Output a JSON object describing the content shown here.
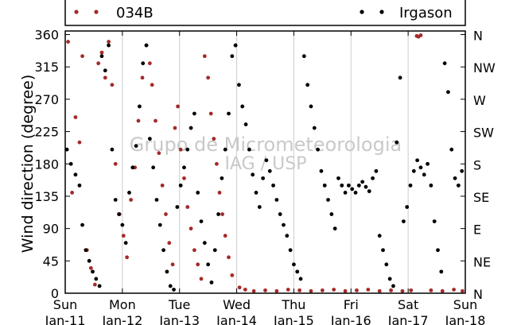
{
  "chart_data": {
    "type": "scatter",
    "ylabel": "Wind direction (degree)",
    "ylim": [
      0,
      365
    ],
    "xlim": [
      "Jan-11",
      "Jan-18"
    ],
    "x_unit": "day (Jan-11 00:00 to Jan-18 00:00)",
    "y_ticks": [
      "0",
      "45",
      "90",
      "135",
      "180",
      "225",
      "270",
      "315",
      "360"
    ],
    "y_right_ticks": [
      "N",
      "NE",
      "E",
      "SE",
      "S",
      "SW",
      "W",
      "NW",
      "N"
    ],
    "x_ticks": [
      {
        "day": "Sun",
        "date": "Jan-11"
      },
      {
        "day": "Mon",
        "date": "Jan-12"
      },
      {
        "day": "Tue",
        "date": "Jan-13"
      },
      {
        "day": "Wed",
        "date": "Jan-14"
      },
      {
        "day": "Thu",
        "date": "Jan-15"
      },
      {
        "day": "Fri",
        "date": "Jan-16"
      },
      {
        "day": "Sat",
        "date": "Jan-17"
      },
      {
        "day": "Sun",
        "date": "Jan-18"
      }
    ],
    "grid": "vertical",
    "legend_placement": "top (outside plot)",
    "watermark": [
      "Grupo de Micrometeorologia",
      "IAG / USP"
    ],
    "series": [
      {
        "name": "034B",
        "color": "#a52a2a",
        "points": [
          [
            0.05,
            350
          ],
          [
            0.12,
            140
          ],
          [
            0.18,
            245
          ],
          [
            0.25,
            210
          ],
          [
            0.3,
            330
          ],
          [
            0.38,
            60
          ],
          [
            0.45,
            35
          ],
          [
            0.52,
            12
          ],
          [
            0.58,
            320
          ],
          [
            0.64,
            335
          ],
          [
            0.7,
            300
          ],
          [
            0.76,
            350
          ],
          [
            0.82,
            290
          ],
          [
            0.88,
            180
          ],
          [
            0.95,
            110
          ],
          [
            1.02,
            80
          ],
          [
            1.08,
            50
          ],
          [
            1.15,
            130
          ],
          [
            1.22,
            175
          ],
          [
            1.28,
            240
          ],
          [
            1.35,
            300
          ],
          [
            1.42,
            345
          ],
          [
            1.48,
            320
          ],
          [
            1.52,
            290
          ],
          [
            1.58,
            240
          ],
          [
            1.64,
            195
          ],
          [
            1.7,
            150
          ],
          [
            1.76,
            110
          ],
          [
            1.82,
            70
          ],
          [
            1.88,
            40
          ],
          [
            1.92,
            230
          ],
          [
            1.97,
            260
          ],
          [
            2.02,
            200
          ],
          [
            2.08,
            160
          ],
          [
            2.14,
            120
          ],
          [
            2.2,
            90
          ],
          [
            2.26,
            60
          ],
          [
            2.32,
            40
          ],
          [
            2.38,
            20
          ],
          [
            2.44,
            330
          ],
          [
            2.5,
            300
          ],
          [
            2.55,
            250
          ],
          [
            2.6,
            215
          ],
          [
            2.65,
            180
          ],
          [
            2.7,
            140
          ],
          [
            2.75,
            110
          ],
          [
            2.8,
            80
          ],
          [
            2.86,
            50
          ],
          [
            2.92,
            25
          ],
          [
            2.98,
            345
          ],
          [
            3.05,
            8
          ],
          [
            3.15,
            5
          ],
          [
            3.3,
            3
          ],
          [
            3.5,
            4
          ],
          [
            3.7,
            3
          ],
          [
            3.9,
            5
          ],
          [
            4.1,
            4
          ],
          [
            4.3,
            3
          ],
          [
            4.5,
            4
          ],
          [
            4.7,
            5
          ],
          [
            4.9,
            3
          ],
          [
            5.1,
            4
          ],
          [
            5.3,
            5
          ],
          [
            5.5,
            3
          ],
          [
            5.7,
            4
          ],
          [
            5.9,
            3
          ],
          [
            6.05,
            4
          ],
          [
            6.15,
            358
          ],
          [
            6.18,
            357
          ],
          [
            6.22,
            359
          ],
          [
            6.4,
            4
          ],
          [
            6.6,
            3
          ],
          [
            6.8,
            5
          ],
          [
            6.95,
            3
          ]
        ]
      },
      {
        "name": "Irgason",
        "color": "#000000",
        "points": [
          [
            0.03,
            200
          ],
          [
            0.1,
            180
          ],
          [
            0.18,
            165
          ],
          [
            0.25,
            150
          ],
          [
            0.3,
            95
          ],
          [
            0.36,
            60
          ],
          [
            0.42,
            45
          ],
          [
            0.48,
            30
          ],
          [
            0.54,
            20
          ],
          [
            0.6,
            10
          ],
          [
            0.64,
            330
          ],
          [
            0.7,
            310
          ],
          [
            0.76,
            345
          ],
          [
            0.82,
            200
          ],
          [
            0.88,
            130
          ],
          [
            0.94,
            110
          ],
          [
            1.0,
            95
          ],
          [
            1.06,
            70
          ],
          [
            1.12,
            140
          ],
          [
            1.18,
            175
          ],
          [
            1.24,
            205
          ],
          [
            1.3,
            260
          ],
          [
            1.36,
            320
          ],
          [
            1.42,
            345
          ],
          [
            1.48,
            215
          ],
          [
            1.54,
            175
          ],
          [
            1.6,
            130
          ],
          [
            1.66,
            95
          ],
          [
            1.72,
            60
          ],
          [
            1.78,
            30
          ],
          [
            1.84,
            10
          ],
          [
            1.9,
            5
          ],
          [
            1.96,
            120
          ],
          [
            2.02,
            150
          ],
          [
            2.08,
            175
          ],
          [
            2.14,
            200
          ],
          [
            2.2,
            230
          ],
          [
            2.26,
            250
          ],
          [
            2.32,
            140
          ],
          [
            2.38,
            100
          ],
          [
            2.44,
            70
          ],
          [
            2.5,
            40
          ],
          [
            2.56,
            15
          ],
          [
            2.62,
            60
          ],
          [
            2.68,
            110
          ],
          [
            2.74,
            160
          ],
          [
            2.8,
            200
          ],
          [
            2.86,
            250
          ],
          [
            2.92,
            330
          ],
          [
            2.98,
            345
          ],
          [
            3.04,
            290
          ],
          [
            3.1,
            260
          ],
          [
            3.16,
            235
          ],
          [
            3.22,
            200
          ],
          [
            3.28,
            165
          ],
          [
            3.34,
            140
          ],
          [
            3.4,
            120
          ],
          [
            3.46,
            160
          ],
          [
            3.52,
            185
          ],
          [
            3.58,
            170
          ],
          [
            3.64,
            150
          ],
          [
            3.7,
            130
          ],
          [
            3.76,
            110
          ],
          [
            3.82,
            95
          ],
          [
            3.88,
            80
          ],
          [
            3.94,
            60
          ],
          [
            4.0,
            40
          ],
          [
            4.06,
            30
          ],
          [
            4.12,
            20
          ],
          [
            4.18,
            330
          ],
          [
            4.24,
            290
          ],
          [
            4.3,
            260
          ],
          [
            4.36,
            230
          ],
          [
            4.42,
            200
          ],
          [
            4.48,
            170
          ],
          [
            4.54,
            150
          ],
          [
            4.6,
            130
          ],
          [
            4.66,
            110
          ],
          [
            4.72,
            90
          ],
          [
            4.78,
            160
          ],
          [
            4.84,
            150
          ],
          [
            4.9,
            140
          ],
          [
            4.96,
            150
          ],
          [
            5.02,
            145
          ],
          [
            5.08,
            140
          ],
          [
            5.14,
            150
          ],
          [
            5.2,
            155
          ],
          [
            5.26,
            148
          ],
          [
            5.32,
            142
          ],
          [
            5.38,
            160
          ],
          [
            5.44,
            170
          ],
          [
            5.5,
            80
          ],
          [
            5.56,
            60
          ],
          [
            5.62,
            40
          ],
          [
            5.68,
            20
          ],
          [
            5.74,
            10
          ],
          [
            5.8,
            210
          ],
          [
            5.86,
            300
          ],
          [
            5.92,
            100
          ],
          [
            5.98,
            120
          ],
          [
            6.04,
            150
          ],
          [
            6.1,
            170
          ],
          [
            6.16,
            185
          ],
          [
            6.22,
            175
          ],
          [
            6.28,
            165
          ],
          [
            6.34,
            180
          ],
          [
            6.4,
            150
          ],
          [
            6.46,
            100
          ],
          [
            6.52,
            60
          ],
          [
            6.58,
            30
          ],
          [
            6.64,
            320
          ],
          [
            6.7,
            280
          ],
          [
            6.76,
            200
          ],
          [
            6.82,
            160
          ],
          [
            6.88,
            150
          ],
          [
            6.94,
            170
          ]
        ]
      }
    ]
  }
}
